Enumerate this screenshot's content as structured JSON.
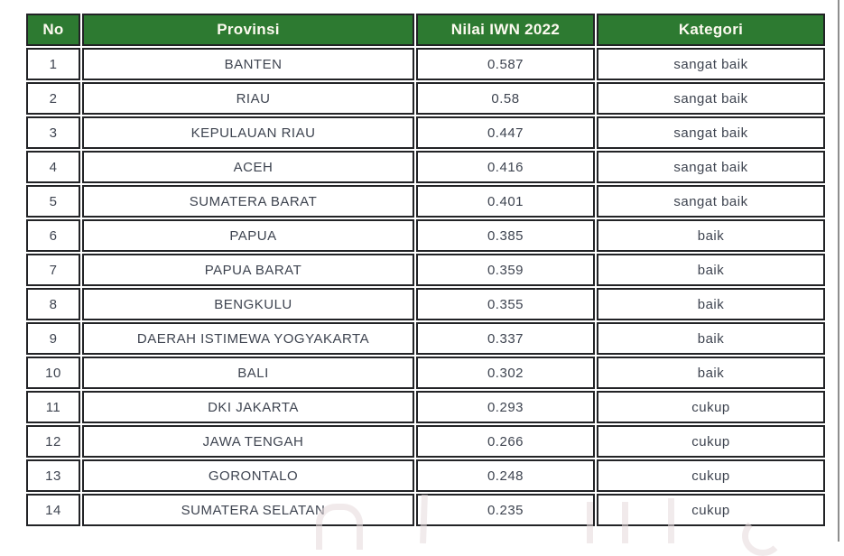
{
  "colors": {
    "header_bg": "#2d7a31",
    "header_text": "#fdfaf0",
    "cell_border": "#222326",
    "muted_cell_border": "#ababab",
    "body_text": "#3e4450",
    "page_edge_line": "#8e8e8e"
  },
  "table": {
    "headers": {
      "no": "No",
      "provinsi": "Provinsi",
      "nilai": "Nilai IWN 2022",
      "kategori": "Kategori"
    },
    "rows": [
      {
        "no": "1",
        "provinsi": "BANTEN",
        "nilai": "0.587",
        "kategori": "sangat baik",
        "nilai_cell_muted_border": false
      },
      {
        "no": "2",
        "provinsi": "RIAU",
        "nilai": "0.58",
        "kategori": "sangat baik",
        "nilai_cell_muted_border": true
      },
      {
        "no": "3",
        "provinsi": "KEPULAUAN RIAU",
        "nilai": "0.447",
        "kategori": "sangat baik",
        "nilai_cell_muted_border": false
      },
      {
        "no": "4",
        "provinsi": "ACEH",
        "nilai": "0.416",
        "kategori": "sangat baik",
        "nilai_cell_muted_border": false
      },
      {
        "no": "5",
        "provinsi": "SUMATERA BARAT",
        "nilai": "0.401",
        "kategori": "sangat baik",
        "nilai_cell_muted_border": false
      },
      {
        "no": "6",
        "provinsi": "PAPUA",
        "nilai": "0.385",
        "kategori": "baik",
        "nilai_cell_muted_border": false
      },
      {
        "no": "7",
        "provinsi": "PAPUA BARAT",
        "nilai": "0.359",
        "kategori": "baik",
        "nilai_cell_muted_border": false
      },
      {
        "no": "8",
        "provinsi": "BENGKULU",
        "nilai": "0.355",
        "kategori": "baik",
        "nilai_cell_muted_border": false
      },
      {
        "no": "9",
        "provinsi": "DAERAH ISTIMEWA YOGYAKARTA",
        "nilai": "0.337",
        "kategori": "baik",
        "nilai_cell_muted_border": false
      },
      {
        "no": "10",
        "provinsi": "BALI",
        "nilai": "0.302",
        "kategori": "baik",
        "nilai_cell_muted_border": false
      },
      {
        "no": "11",
        "provinsi": "DKI JAKARTA",
        "nilai": "0.293",
        "kategori": "cukup",
        "nilai_cell_muted_border": false
      },
      {
        "no": "12",
        "provinsi": "JAWA TENGAH",
        "nilai": "0.266",
        "kategori": "cukup",
        "nilai_cell_muted_border": false
      },
      {
        "no": "13",
        "provinsi": "GORONTALO",
        "nilai": "0.248",
        "kategori": "cukup",
        "nilai_cell_muted_border": true
      },
      {
        "no": "14",
        "provinsi": "SUMATERA SELATAN",
        "nilai": "0.235",
        "kategori": "cukup",
        "nilai_cell_muted_border": false
      }
    ]
  },
  "chart_data": {
    "type": "table",
    "columns": [
      "No",
      "Provinsi",
      "Nilai IWN 2022",
      "Kategori"
    ],
    "rows": [
      [
        "1",
        "BANTEN",
        "0.587",
        "sangat baik"
      ],
      [
        "2",
        "RIAU",
        "0.58",
        "sangat baik"
      ],
      [
        "3",
        "KEPULAUAN RIAU",
        "0.447",
        "sangat baik"
      ],
      [
        "4",
        "ACEH",
        "0.416",
        "sangat baik"
      ],
      [
        "5",
        "SUMATERA BARAT",
        "0.401",
        "sangat baik"
      ],
      [
        "6",
        "PAPUA",
        "0.385",
        "baik"
      ],
      [
        "7",
        "PAPUA BARAT",
        "0.359",
        "baik"
      ],
      [
        "8",
        "BENGKULU",
        "0.355",
        "baik"
      ],
      [
        "9",
        "DAERAH ISTIMEWA YOGYAKARTA",
        "0.337",
        "baik"
      ],
      [
        "10",
        "BALI",
        "0.302",
        "baik"
      ],
      [
        "11",
        "DKI JAKARTA",
        "0.293",
        "cukup"
      ],
      [
        "12",
        "JAWA TENGAH",
        "0.266",
        "cukup"
      ],
      [
        "13",
        "GORONTALO",
        "0.248",
        "cukup"
      ],
      [
        "14",
        "SUMATERA SELATAN",
        "0.235",
        "cukup"
      ]
    ]
  }
}
